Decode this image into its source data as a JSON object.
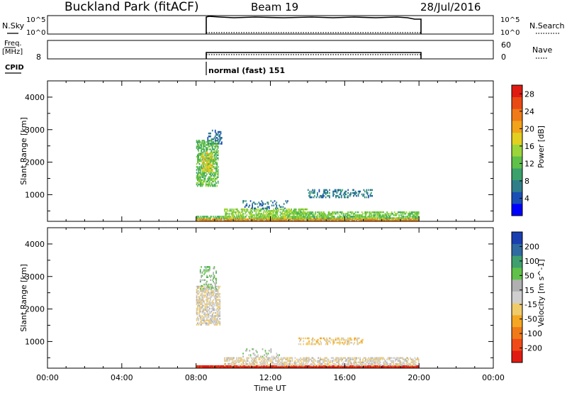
{
  "header": {
    "station": "Buckland Park (fitACF)",
    "beam": "Beam 19",
    "date": "28/Jul/2016"
  },
  "strips": {
    "nsky_label": "N.Sky",
    "nsky_ticks": [
      "10^5",
      "10^0"
    ],
    "nsearch_label": "N.Search",
    "nsearch_ticks": [
      "10^5",
      "10^0"
    ],
    "freq_label": "Freq.",
    "freq_unit": "[MHz]",
    "freq_ticks": [
      "8"
    ],
    "nave_label": "Nave",
    "nave_ticks": [
      "60",
      "0"
    ],
    "cpid_label": "CPID",
    "cpid_value": "normal (fast) 151"
  },
  "colors": {
    "power": [
      "#0000ff",
      "#1a4fb5",
      "#2f7e8a",
      "#3aa06c",
      "#5fc04a",
      "#9bd53a",
      "#e2cf20",
      "#f2a319",
      "#f07a17",
      "#e94a14",
      "#e01b12"
    ],
    "velocity": [
      "#e01b12",
      "#f04a18",
      "#f07a17",
      "#f5a623",
      "#f0cb6a",
      "#cfcfcf",
      "#b0b0b0",
      "#5fc04a",
      "#3f9f6e",
      "#2f6aa0",
      "#1a3fb0"
    ],
    "ground_scatter": "#9e9e9e"
  },
  "chart_data": [
    {
      "type": "heatmap",
      "name": "power",
      "xlabel": "",
      "ylabel": "Slant Range [km]",
      "xlim": [
        0,
        24
      ],
      "ylim": [
        180,
        4500
      ],
      "x_ticks": [
        "00:00",
        "04:00",
        "08:00",
        "12:00",
        "16:00",
        "20:00",
        "00:00"
      ],
      "y_ticks": [
        1000,
        2000,
        3000,
        4000
      ],
      "colorbar": {
        "label": "Power [dB]",
        "range": [
          0,
          30
        ],
        "ticks": [
          4,
          8,
          12,
          16,
          20,
          24,
          28
        ]
      },
      "regions": [
        {
          "t0": 8.0,
          "t1": 20.0,
          "r0": 180,
          "r1": 260,
          "value": 22,
          "density": 0.9
        },
        {
          "t0": 8.0,
          "t1": 20.0,
          "r0": 260,
          "r1": 320,
          "value": 12,
          "density": 0.55
        },
        {
          "t0": 9.5,
          "t1": 14.0,
          "r0": 260,
          "r1": 560,
          "value": 14,
          "density": 0.6
        },
        {
          "t0": 13.0,
          "t1": 20.0,
          "r0": 260,
          "r1": 450,
          "value": 13,
          "density": 0.55
        },
        {
          "t0": 8.0,
          "t1": 9.2,
          "r0": 1250,
          "r1": 2650,
          "value": 12,
          "density": 0.6
        },
        {
          "t0": 8.3,
          "t1": 8.9,
          "r0": 1700,
          "r1": 2300,
          "value": 18,
          "density": 0.5
        },
        {
          "t0": 8.6,
          "t1": 9.4,
          "r0": 2550,
          "r1": 3000,
          "value": 6,
          "density": 0.35
        },
        {
          "t0": 10.5,
          "t1": 13.0,
          "r0": 560,
          "r1": 820,
          "value": 6,
          "density": 0.2
        },
        {
          "t0": 14.0,
          "t1": 17.5,
          "r0": 900,
          "r1": 1150,
          "value": 7,
          "density": 0.35
        }
      ]
    },
    {
      "type": "heatmap",
      "name": "velocity",
      "xlabel": "Time UT",
      "ylabel": "Slant Range [km]",
      "xlim": [
        0,
        24
      ],
      "ylim": [
        180,
        4500
      ],
      "x_ticks": [
        "00:00",
        "04:00",
        "08:00",
        "12:00",
        "16:00",
        "20:00",
        "00:00"
      ],
      "y_ticks": [
        1000,
        2000,
        3000,
        4000
      ],
      "colorbar": {
        "label": "Velocity [m s^-1]",
        "range": [
          -250,
          250
        ],
        "ticks": [
          -200,
          -100,
          -50,
          -15,
          15,
          50,
          100,
          200
        ]
      },
      "regions": [
        {
          "t0": 8.0,
          "t1": 20.0,
          "r0": 180,
          "r1": 250,
          "value": -220,
          "density": 1.0
        },
        {
          "t0": 9.5,
          "t1": 20.0,
          "r0": 250,
          "r1": 520,
          "value": -10,
          "density": 0.55
        },
        {
          "t0": 8.0,
          "t1": 9.3,
          "r0": 1500,
          "r1": 2700,
          "value": -5,
          "density": 0.6
        },
        {
          "t0": 8.2,
          "t1": 9.1,
          "r0": 2600,
          "r1": 3300,
          "value": 80,
          "density": 0.3
        },
        {
          "t0": 13.5,
          "t1": 17.0,
          "r0": 900,
          "r1": 1100,
          "value": -40,
          "density": 0.4
        },
        {
          "t0": 10.5,
          "t1": 12.5,
          "r0": 520,
          "r1": 760,
          "value": 40,
          "density": 0.2
        }
      ]
    }
  ]
}
